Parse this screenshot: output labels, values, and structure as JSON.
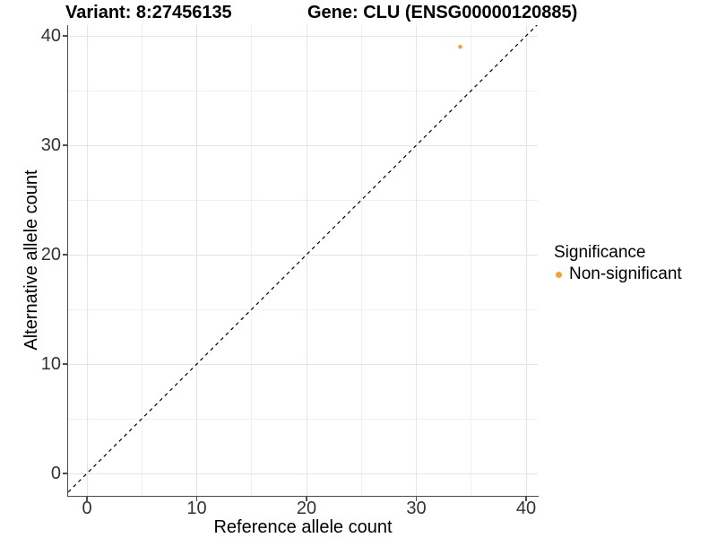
{
  "titles": {
    "variant": "Variant: 8:27456135",
    "gene": "Gene: CLU (ENSG00000120885)"
  },
  "axes": {
    "x": {
      "label": "Reference allele count"
    },
    "y": {
      "label": "Alternative allele count"
    }
  },
  "legend": {
    "title": "Significance",
    "items": [
      {
        "label": "Non-significant",
        "color": "#F8A032"
      }
    ]
  },
  "colors": {
    "point": "#F8A032",
    "axis": "#4d4d4d",
    "grid_major": "#e5e5e5",
    "grid_minor": "#f0f0f0",
    "reference_line": "#000000"
  },
  "chart_data": {
    "type": "scatter",
    "title": "Variant: 8:27456135 | Gene: CLU (ENSG00000120885)",
    "xlabel": "Reference allele count",
    "ylabel": "Alternative allele count",
    "xlim": [
      -1.7,
      41.1
    ],
    "ylim": [
      -2.1,
      41.1
    ],
    "x_major_ticks": [
      0,
      10,
      20,
      30,
      40
    ],
    "y_major_ticks": [
      0,
      10,
      20,
      30,
      40
    ],
    "x_minor_ticks": [
      5,
      15,
      25,
      35
    ],
    "y_minor_ticks": [
      5,
      15,
      25,
      35
    ],
    "grid": true,
    "legend_position": "right",
    "series": [
      {
        "name": "Non-significant",
        "color": "#F8A032",
        "points": [
          [
            34,
            39
          ]
        ]
      }
    ],
    "reference_line": {
      "type": "identity y=x",
      "style": "dashed",
      "color": "#000000"
    }
  }
}
